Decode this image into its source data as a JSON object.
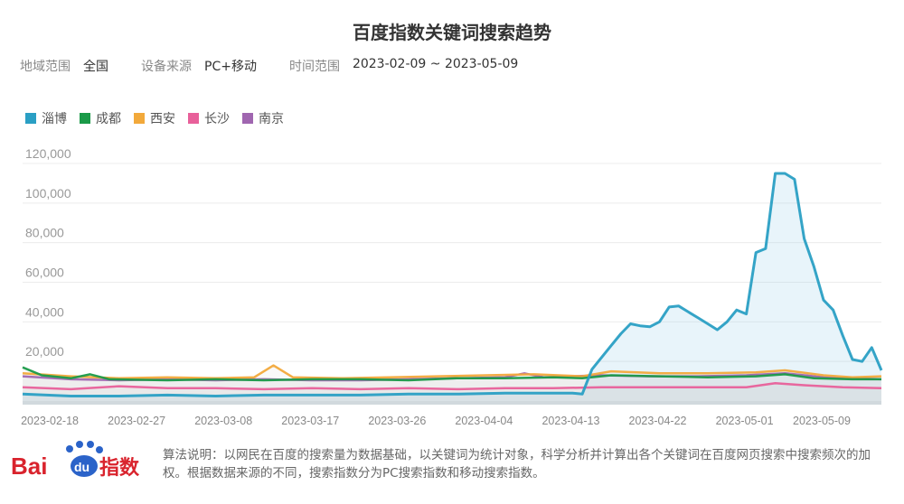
{
  "title": "百度指数关键词搜索趋势",
  "filters": [
    {
      "label": "地域范围",
      "value": "全国"
    },
    {
      "label": "设备来源",
      "value": "PC+移动"
    },
    {
      "label": "时间范围",
      "value": "2023-02-09 ~ 2023-05-09"
    }
  ],
  "footer": {
    "logo_text": "Baidu指数",
    "note": "算法说明：以网民在百度的搜索量为数据基础，以关键词为统计对象，科学分析并计算出各个关键词在百度网页搜索中搜索频次的加权。根据数据来源的不同，搜索指数分为PC搜索指数和移动搜索指数。"
  },
  "chart_data": {
    "type": "line",
    "title": "百度指数关键词搜索趋势",
    "xlabel": "",
    "ylabel": "",
    "xlim": [
      "2023-02-12",
      "2023-05-12"
    ],
    "ylim": [
      0,
      120000
    ],
    "y_ticks": [
      "20,000",
      "40,000",
      "60,000",
      "80,000",
      "100,000",
      "120,000"
    ],
    "y_tick_values": [
      20000,
      40000,
      60000,
      80000,
      100000,
      120000
    ],
    "x_ticks": [
      "2023-02-18",
      "2023-02-27",
      "2023-03-08",
      "2023-03-17",
      "2023-03-26",
      "2023-04-04",
      "2023-04-13",
      "2023-04-22",
      "2023-05-01",
      "2023-05-09"
    ],
    "grid": true,
    "legend_position": "top-left",
    "series": [
      {
        "name": "淄博",
        "color": "#2a9fc4",
        "fill": true,
        "points": [
          [
            "2023-02-12",
            3500
          ],
          [
            "2023-02-17",
            2500
          ],
          [
            "2023-02-22",
            2500
          ],
          [
            "2023-02-27",
            3000
          ],
          [
            "2023-03-04",
            2500
          ],
          [
            "2023-03-09",
            3000
          ],
          [
            "2023-03-14",
            3000
          ],
          [
            "2023-03-19",
            3000
          ],
          [
            "2023-03-24",
            3500
          ],
          [
            "2023-03-29",
            3500
          ],
          [
            "2023-04-03",
            4000
          ],
          [
            "2023-04-08",
            4000
          ],
          [
            "2023-04-10",
            4000
          ],
          [
            "2023-04-11",
            3500
          ],
          [
            "2023-04-12",
            16000
          ],
          [
            "2023-04-13",
            22000
          ],
          [
            "2023-04-14",
            28000
          ],
          [
            "2023-04-15",
            34000
          ],
          [
            "2023-04-16",
            39000
          ],
          [
            "2023-04-17",
            38000
          ],
          [
            "2023-04-18",
            37500
          ],
          [
            "2023-04-19",
            40000
          ],
          [
            "2023-04-20",
            47500
          ],
          [
            "2023-04-21",
            48000
          ],
          [
            "2023-04-22",
            45000
          ],
          [
            "2023-04-23",
            42000
          ],
          [
            "2023-04-24",
            39000
          ],
          [
            "2023-04-25",
            36000
          ],
          [
            "2023-04-26",
            40000
          ],
          [
            "2023-04-27",
            46000
          ],
          [
            "2023-04-28",
            44000
          ],
          [
            "2023-04-29",
            75000
          ],
          [
            "2023-04-30",
            77000
          ],
          [
            "2023-05-01",
            115000
          ],
          [
            "2023-05-02",
            115000
          ],
          [
            "2023-05-03",
            112000
          ],
          [
            "2023-05-04",
            82000
          ],
          [
            "2023-05-05",
            68000
          ],
          [
            "2023-05-06",
            51000
          ],
          [
            "2023-05-07",
            46000
          ],
          [
            "2023-05-08",
            33000
          ],
          [
            "2023-05-09",
            21000
          ],
          [
            "2023-05-10",
            20000
          ],
          [
            "2023-05-11",
            27000
          ],
          [
            "2023-05-12",
            15500
          ]
        ]
      },
      {
        "name": "成都",
        "color": "#1a9a48",
        "points": [
          [
            "2023-02-12",
            17000
          ],
          [
            "2023-02-14",
            13000
          ],
          [
            "2023-02-17",
            11500
          ],
          [
            "2023-02-19",
            13500
          ],
          [
            "2023-02-21",
            11000
          ],
          [
            "2023-02-27",
            10500
          ],
          [
            "2023-03-04",
            11000
          ],
          [
            "2023-03-09",
            10500
          ],
          [
            "2023-03-14",
            11000
          ],
          [
            "2023-03-19",
            11000
          ],
          [
            "2023-03-24",
            10500
          ],
          [
            "2023-03-29",
            11500
          ],
          [
            "2023-04-03",
            11500
          ],
          [
            "2023-04-08",
            12000
          ],
          [
            "2023-04-11",
            11500
          ],
          [
            "2023-04-14",
            13000
          ],
          [
            "2023-04-19",
            12500
          ],
          [
            "2023-04-24",
            12000
          ],
          [
            "2023-04-29",
            12500
          ],
          [
            "2023-05-02",
            13500
          ],
          [
            "2023-05-05",
            11500
          ],
          [
            "2023-05-09",
            11000
          ],
          [
            "2023-05-12",
            11000
          ]
        ]
      },
      {
        "name": "西安",
        "color": "#f2a93b",
        "points": [
          [
            "2023-02-12",
            14000
          ],
          [
            "2023-02-17",
            12500
          ],
          [
            "2023-02-22",
            11500
          ],
          [
            "2023-02-27",
            12000
          ],
          [
            "2023-03-04",
            11500
          ],
          [
            "2023-03-08",
            12000
          ],
          [
            "2023-03-10",
            18000
          ],
          [
            "2023-03-12",
            12000
          ],
          [
            "2023-03-17",
            11500
          ],
          [
            "2023-03-22",
            12000
          ],
          [
            "2023-03-27",
            12500
          ],
          [
            "2023-04-01",
            13000
          ],
          [
            "2023-04-06",
            13500
          ],
          [
            "2023-04-11",
            12500
          ],
          [
            "2023-04-14",
            15000
          ],
          [
            "2023-04-19",
            14000
          ],
          [
            "2023-04-24",
            14000
          ],
          [
            "2023-04-29",
            14500
          ],
          [
            "2023-05-02",
            15500
          ],
          [
            "2023-05-06",
            13000
          ],
          [
            "2023-05-09",
            12000
          ],
          [
            "2023-05-12",
            12500
          ]
        ]
      },
      {
        "name": "长沙",
        "color": "#e8609a",
        "points": [
          [
            "2023-02-12",
            7000
          ],
          [
            "2023-02-17",
            6000
          ],
          [
            "2023-02-22",
            7500
          ],
          [
            "2023-02-27",
            6500
          ],
          [
            "2023-03-04",
            6500
          ],
          [
            "2023-03-09",
            6000
          ],
          [
            "2023-03-14",
            6500
          ],
          [
            "2023-03-19",
            6000
          ],
          [
            "2023-03-24",
            6500
          ],
          [
            "2023-03-29",
            6000
          ],
          [
            "2023-04-03",
            6500
          ],
          [
            "2023-04-08",
            6500
          ],
          [
            "2023-04-13",
            7000
          ],
          [
            "2023-04-18",
            7000
          ],
          [
            "2023-04-23",
            7000
          ],
          [
            "2023-04-28",
            7000
          ],
          [
            "2023-05-01",
            9000
          ],
          [
            "2023-05-04",
            8000
          ],
          [
            "2023-05-08",
            7000
          ],
          [
            "2023-05-12",
            6500
          ]
        ]
      },
      {
        "name": "南京",
        "color": "#a066b0",
        "points": [
          [
            "2023-02-12",
            12500
          ],
          [
            "2023-02-17",
            11000
          ],
          [
            "2023-02-22",
            10500
          ],
          [
            "2023-02-27",
            11000
          ],
          [
            "2023-03-04",
            10500
          ],
          [
            "2023-03-09",
            11000
          ],
          [
            "2023-03-14",
            10500
          ],
          [
            "2023-03-19",
            10500
          ],
          [
            "2023-03-24",
            11000
          ],
          [
            "2023-03-29",
            11500
          ],
          [
            "2023-04-03",
            12000
          ],
          [
            "2023-04-05",
            14000
          ],
          [
            "2023-04-07",
            12000
          ],
          [
            "2023-04-13",
            13000
          ],
          [
            "2023-04-18",
            12500
          ],
          [
            "2023-04-23",
            12500
          ],
          [
            "2023-04-28",
            13000
          ],
          [
            "2023-05-02",
            14000
          ],
          [
            "2023-05-06",
            12000
          ],
          [
            "2023-05-12",
            11000
          ]
        ]
      }
    ]
  }
}
